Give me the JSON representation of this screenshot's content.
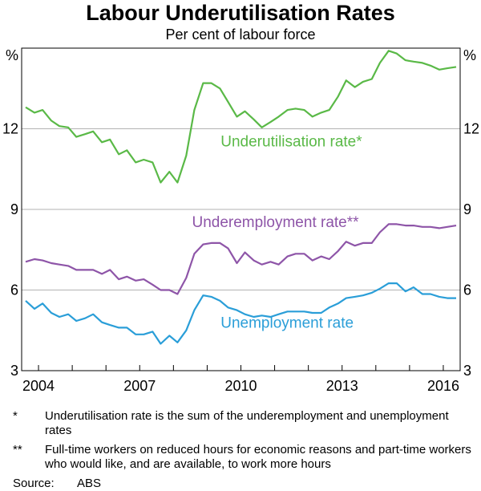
{
  "title": "Labour Underutilisation Rates",
  "subtitle": "Per cent of labour force",
  "colors": {
    "underutilisation": "#5ab947",
    "underemployment": "#8e55a8",
    "unemployment": "#2a9ed8",
    "grid": "#b3b3b3"
  },
  "notes": [
    {
      "mark": "*",
      "text": "Underutilisation rate is the sum of the underemployment and unemployment rates"
    },
    {
      "mark": "**",
      "text": "Full-time workers on reduced hours for economic reasons and part-time workers who would like, and are available, to work more hours"
    }
  ],
  "source": {
    "label": "Source:",
    "value": "ABS"
  },
  "chart_data": {
    "type": "line",
    "ylabel_left": "%",
    "ylabel_right": "%",
    "ylim": [
      3,
      15
    ],
    "yticks": [
      3,
      6,
      9,
      12
    ],
    "xlim": [
      2003.5,
      2016.5
    ],
    "xticks": [
      2004,
      2007,
      2010,
      2013,
      2016
    ],
    "grid": true,
    "series": [
      {
        "name": "Underutilisation rate*",
        "color": "#5ab947",
        "x": [
          2003.62,
          2003.88,
          2004.12,
          2004.38,
          2004.62,
          2004.88,
          2005.12,
          2005.38,
          2005.62,
          2005.88,
          2006.12,
          2006.38,
          2006.62,
          2006.88,
          2007.12,
          2007.38,
          2007.62,
          2007.88,
          2008.12,
          2008.38,
          2008.62,
          2008.88,
          2009.12,
          2009.38,
          2009.62,
          2009.88,
          2010.12,
          2010.38,
          2010.62,
          2010.88,
          2011.12,
          2011.38,
          2011.62,
          2011.88,
          2012.12,
          2012.38,
          2012.62,
          2012.88,
          2013.12,
          2013.38,
          2013.62,
          2013.88,
          2014.12,
          2014.38,
          2014.62,
          2014.88,
          2015.12,
          2015.38,
          2015.62,
          2015.88,
          2016.12,
          2016.38
        ],
        "values": [
          12.8,
          12.6,
          12.7,
          12.3,
          12.1,
          12.05,
          11.7,
          11.8,
          11.9,
          11.5,
          11.6,
          11.05,
          11.2,
          10.75,
          10.85,
          10.75,
          10.0,
          10.4,
          10.0,
          11.0,
          12.7,
          13.7,
          13.7,
          13.5,
          13.0,
          12.45,
          12.65,
          12.35,
          12.05,
          12.25,
          12.45,
          12.7,
          12.75,
          12.7,
          12.45,
          12.6,
          12.7,
          13.2,
          13.8,
          13.55,
          13.75,
          13.85,
          14.45,
          14.9,
          14.8,
          14.55,
          14.5,
          14.45,
          14.35,
          14.2,
          14.25,
          14.3
        ]
      },
      {
        "name": "Underemployment rate**",
        "color": "#8e55a8",
        "x": [
          2003.62,
          2003.88,
          2004.12,
          2004.38,
          2004.62,
          2004.88,
          2005.12,
          2005.38,
          2005.62,
          2005.88,
          2006.12,
          2006.38,
          2006.62,
          2006.88,
          2007.12,
          2007.38,
          2007.62,
          2007.88,
          2008.12,
          2008.38,
          2008.62,
          2008.88,
          2009.12,
          2009.38,
          2009.62,
          2009.88,
          2010.12,
          2010.38,
          2010.62,
          2010.88,
          2011.12,
          2011.38,
          2011.62,
          2011.88,
          2012.12,
          2012.38,
          2012.62,
          2012.88,
          2013.12,
          2013.38,
          2013.62,
          2013.88,
          2014.12,
          2014.38,
          2014.62,
          2014.88,
          2015.12,
          2015.38,
          2015.62,
          2015.88,
          2016.12,
          2016.38
        ],
        "values": [
          7.05,
          7.15,
          7.1,
          7.0,
          6.95,
          6.9,
          6.75,
          6.75,
          6.75,
          6.6,
          6.75,
          6.4,
          6.5,
          6.35,
          6.4,
          6.2,
          6.0,
          6.0,
          5.85,
          6.45,
          7.35,
          7.7,
          7.75,
          7.75,
          7.55,
          7.0,
          7.4,
          7.1,
          6.95,
          7.05,
          6.95,
          7.25,
          7.35,
          7.35,
          7.1,
          7.25,
          7.15,
          7.45,
          7.8,
          7.65,
          7.75,
          7.75,
          8.15,
          8.45,
          8.45,
          8.4,
          8.4,
          8.35,
          8.35,
          8.3,
          8.35,
          8.4
        ]
      },
      {
        "name": "Unemployment rate",
        "color": "#2a9ed8",
        "x": [
          2003.62,
          2003.88,
          2004.12,
          2004.38,
          2004.62,
          2004.88,
          2005.12,
          2005.38,
          2005.62,
          2005.88,
          2006.12,
          2006.38,
          2006.62,
          2006.88,
          2007.12,
          2007.38,
          2007.62,
          2007.88,
          2008.12,
          2008.38,
          2008.62,
          2008.88,
          2009.12,
          2009.38,
          2009.62,
          2009.88,
          2010.12,
          2010.38,
          2010.62,
          2010.88,
          2011.12,
          2011.38,
          2011.62,
          2011.88,
          2012.12,
          2012.38,
          2012.62,
          2012.88,
          2013.12,
          2013.38,
          2013.62,
          2013.88,
          2014.12,
          2014.38,
          2014.62,
          2014.88,
          2015.12,
          2015.38,
          2015.62,
          2015.88,
          2016.12,
          2016.38
        ],
        "values": [
          5.6,
          5.3,
          5.5,
          5.15,
          5.0,
          5.1,
          4.85,
          4.95,
          5.1,
          4.8,
          4.7,
          4.6,
          4.6,
          4.35,
          4.35,
          4.45,
          4.0,
          4.3,
          4.05,
          4.5,
          5.25,
          5.8,
          5.75,
          5.6,
          5.35,
          5.25,
          5.1,
          5.0,
          5.05,
          5.0,
          5.1,
          5.2,
          5.2,
          5.2,
          5.15,
          5.15,
          5.35,
          5.5,
          5.7,
          5.75,
          5.8,
          5.9,
          6.05,
          6.25,
          6.25,
          5.95,
          6.1,
          5.85,
          5.85,
          5.75,
          5.7,
          5.7
        ]
      }
    ],
    "annotations": [
      {
        "text": "Underutilisation rate*",
        "x": 2009.4,
        "y": 11.35,
        "color": "#5ab947"
      },
      {
        "text": "Underemployment rate**",
        "x": 2008.55,
        "y": 8.35,
        "color": "#8e55a8"
      },
      {
        "text": "Unemployment rate",
        "x": 2009.4,
        "y": 4.6,
        "color": "#2a9ed8"
      }
    ]
  }
}
